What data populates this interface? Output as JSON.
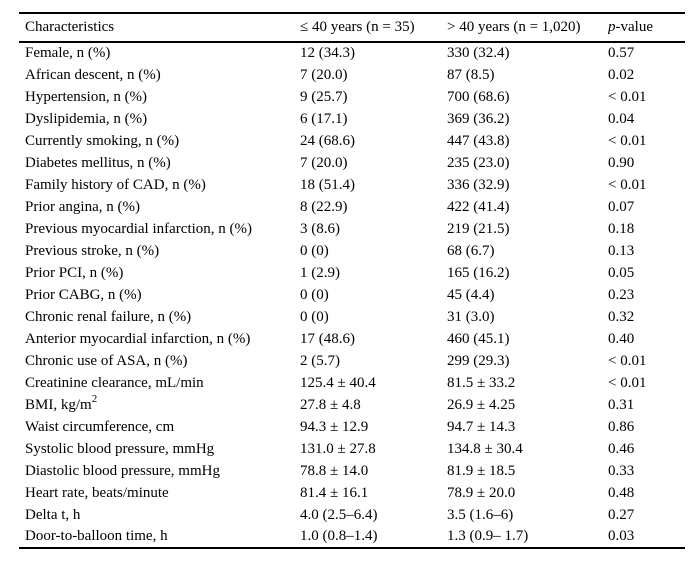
{
  "table": {
    "headers": {
      "characteristics": "Characteristics",
      "group_le40": "≤ 40 years (n = 35)",
      "group_gt40": "> 40 years (n = 1,020)",
      "p_value_italic": "p",
      "p_value_rest": "-value"
    },
    "rows": [
      {
        "characteristic": "Female, n (%)",
        "le_40": "12 (34.3)",
        "gt_40": "330 (32.4)",
        "p_value": "0.57"
      },
      {
        "characteristic": "African descent, n (%)",
        "le_40": "7 (20.0)",
        "gt_40": "87 (8.5)",
        "p_value": "0.02"
      },
      {
        "characteristic": "Hypertension, n (%)",
        "le_40": "9 (25.7)",
        "gt_40": "700 (68.6)",
        "p_value": "< 0.01"
      },
      {
        "characteristic": "Dyslipidemia, n (%)",
        "le_40": "6 (17.1)",
        "gt_40": "369 (36.2)",
        "p_value": "0.04"
      },
      {
        "characteristic": "Currently smoking, n (%)",
        "le_40": "24 (68.6)",
        "gt_40": "447 (43.8)",
        "p_value": "< 0.01"
      },
      {
        "characteristic": "Diabetes mellitus, n (%)",
        "le_40": "7 (20.0)",
        "gt_40": "235 (23.0)",
        "p_value": "0.90"
      },
      {
        "characteristic": "Family history of CAD, n (%)",
        "le_40": "18 (51.4)",
        "gt_40": "336 (32.9)",
        "p_value": "< 0.01"
      },
      {
        "characteristic": "Prior angina, n (%)",
        "le_40": "8 (22.9)",
        "gt_40": "422 (41.4)",
        "p_value": "0.07"
      },
      {
        "characteristic": "Previous myocardial infarction, n (%)",
        "le_40": "3 (8.6)",
        "gt_40": "219 (21.5)",
        "p_value": "0.18"
      },
      {
        "characteristic": "Previous stroke, n (%)",
        "le_40": "0 (0)",
        "gt_40": "68 (6.7)",
        "p_value": "0.13"
      },
      {
        "characteristic": "Prior PCI, n (%)",
        "le_40": "1 (2.9)",
        "gt_40": "165 (16.2)",
        "p_value": "0.05"
      },
      {
        "characteristic": "Prior CABG, n (%)",
        "le_40": "0 (0)",
        "gt_40": "45 (4.4)",
        "p_value": "0.23"
      },
      {
        "characteristic": "Chronic renal failure, n (%)",
        "le_40": "0 (0)",
        "gt_40": "31 (3.0)",
        "p_value": "0.32"
      },
      {
        "characteristic": "Anterior myocardial infarction, n (%)",
        "le_40": "17 (48.6)",
        "gt_40": "460 (45.1)",
        "p_value": "0.40"
      },
      {
        "characteristic": "Chronic use of ASA, n (%)",
        "le_40": "2 (5.7)",
        "gt_40": "299 (29.3)",
        "p_value": "< 0.01"
      },
      {
        "characteristic": "Creatinine clearance, mL/min",
        "le_40": "125.4 ± 40.4",
        "gt_40": "81.5 ± 33.2",
        "p_value": "< 0.01"
      },
      {
        "characteristic": "BMI, kg/m²",
        "le_40": "27.8 ± 4.8",
        "gt_40": "26.9 ± 4.25",
        "p_value": "0.31"
      },
      {
        "characteristic": "Waist circumference, cm",
        "le_40": "94.3 ± 12.9",
        "gt_40": "94.7 ± 14.3",
        "p_value": "0.86"
      },
      {
        "characteristic": "Systolic blood pressure, mmHg",
        "le_40": "131.0 ± 27.8",
        "gt_40": "134.8 ± 30.4",
        "p_value": "0.46"
      },
      {
        "characteristic": "Diastolic blood pressure, mmHg",
        "le_40": "78.8 ± 14.0",
        "gt_40": "81.9 ± 18.5",
        "p_value": "0.33"
      },
      {
        "characteristic": "Heart rate, beats/minute",
        "le_40": "81.4 ± 16.1",
        "gt_40": "78.9 ± 20.0",
        "p_value": "0.48"
      },
      {
        "characteristic": "Delta t, h",
        "le_40": "4.0 (2.5–6.4)",
        "gt_40": "3.5 (1.6–6)",
        "p_value": "0.27"
      },
      {
        "characteristic": "Door-to-balloon time, h",
        "le_40": "1.0 (0.8–1.4)",
        "gt_40": "1.3 (0.9– 1.7)",
        "p_value": "0.03"
      }
    ]
  }
}
